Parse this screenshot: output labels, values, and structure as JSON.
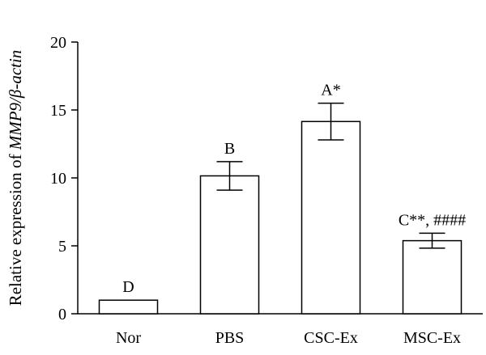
{
  "chart_data": {
    "type": "bar",
    "title": "",
    "xlabel": "",
    "ylabel": "Relative expression of MMP9/β-actin",
    "ylabel_parts": {
      "prefix": "Relative expression of ",
      "italic": "MMP9/β-actin"
    },
    "ylim": [
      0,
      20
    ],
    "yticks": [
      0,
      5,
      10,
      15,
      20
    ],
    "grid": false,
    "legend": "none",
    "categories": [
      "Nor",
      "PBS",
      "CSC-Ex",
      "MSC-Ex"
    ],
    "values": [
      1.0,
      10.15,
      14.15,
      5.38
    ],
    "errors": [
      0.0,
      1.05,
      1.35,
      0.55
    ],
    "annotations": [
      "D",
      "B",
      "A*",
      "C**, ####"
    ],
    "colors": {
      "bar_fill": "#ffffff",
      "stroke": "#000000",
      "text": "#000000"
    }
  }
}
